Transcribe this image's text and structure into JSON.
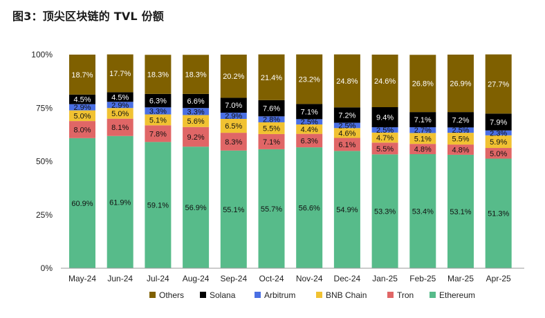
{
  "title": "图3：顶尖区块链的 TVL 份额",
  "colors": {
    "Ethereum": "#57bb8a",
    "Tron": "#e06666",
    "BNB Chain": "#f1c232",
    "Arbitrum": "#4a6fe3",
    "Solana": "#000000",
    "Others": "#7f6000"
  },
  "chart_data": {
    "type": "bar",
    "stacked": true,
    "categories": [
      "May-24",
      "Jun-24",
      "Jul-24",
      "Aug-24",
      "Sep-24",
      "Oct-24",
      "Nov-24",
      "Dec-24",
      "Jan-25",
      "Feb-25",
      "Mar-25",
      "Apr-25"
    ],
    "series": [
      {
        "name": "Ethereum",
        "values": [
          60.9,
          61.9,
          59.1,
          56.9,
          55.1,
          55.7,
          56.6,
          54.9,
          53.3,
          53.4,
          53.1,
          51.3
        ],
        "labels": [
          "60.9%",
          "61.9%",
          "59.1%",
          "56.9%",
          "55.1%",
          "55.7%",
          "56.6%",
          "54.9%",
          "53.3%",
          "53.4%",
          "53.1%",
          "51.3%"
        ]
      },
      {
        "name": "Tron",
        "values": [
          8.0,
          8.1,
          7.8,
          9.2,
          8.3,
          7.1,
          6.3,
          6.1,
          5.5,
          4.8,
          4.8,
          5.0
        ],
        "labels": [
          "8.0%",
          "8.1%",
          "7.8%",
          "9.2%",
          "8.3%",
          "7.1%",
          "6.3%",
          "6.1%",
          "5.5%",
          "4.8%",
          "4.8%",
          "5.0%"
        ]
      },
      {
        "name": "BNB Chain",
        "values": [
          5.0,
          5.0,
          5.1,
          5.6,
          6.5,
          5.5,
          4.4,
          4.6,
          4.7,
          5.1,
          5.5,
          5.9
        ],
        "labels": [
          "5.0%",
          "5.0%",
          "5.1%",
          "5.6%",
          "6.5%",
          "5.5%",
          "4.4%",
          "4.6%",
          "4.7%",
          "5.1%",
          "5.5%",
          "5.9%"
        ]
      },
      {
        "name": "Arbitrum",
        "values": [
          2.9,
          2.9,
          3.3,
          3.3,
          2.9,
          2.8,
          2.5,
          2.5,
          2.5,
          2.7,
          2.5,
          2.3
        ],
        "labels": [
          "2.9%",
          "2.9%",
          "3.3%",
          "3.3%",
          "2.9%",
          "2.8%",
          "2.5%",
          "2.5%",
          "2.5%",
          "2.7%",
          "2.5%",
          "2.3%"
        ]
      },
      {
        "name": "Solana",
        "values": [
          4.5,
          4.5,
          6.3,
          6.6,
          7.0,
          7.6,
          7.1,
          7.2,
          9.4,
          7.1,
          7.2,
          7.9
        ],
        "labels": [
          "4.5%",
          "4.5%",
          "6.3%",
          "6.6%",
          "7.0%",
          "7.6%",
          "7.1%",
          "7.2%",
          "9.4%",
          "7.1%",
          "7.2%",
          "7.9%"
        ]
      },
      {
        "name": "Others",
        "values": [
          18.7,
          17.7,
          18.3,
          18.3,
          20.2,
          21.4,
          23.2,
          24.8,
          24.6,
          26.8,
          26.9,
          27.7
        ],
        "labels": [
          "18.7%",
          "17.7%",
          "18.3%",
          "18.3%",
          "20.2%",
          "21.4%",
          "23.2%",
          "24.8%",
          "24.6%",
          "26.8%",
          "26.9%",
          "27.7%"
        ]
      }
    ],
    "ylim": [
      0,
      100
    ],
    "yticks": [
      0,
      25,
      50,
      75,
      100
    ],
    "ytick_labels": [
      "0%",
      "25%",
      "50%",
      "75%",
      "100%"
    ],
    "legend": {
      "position": "bottom",
      "order": [
        "Others",
        "Solana",
        "Arbitrum",
        "BNB Chain",
        "Tron",
        "Ethereum"
      ]
    },
    "grid": false
  }
}
